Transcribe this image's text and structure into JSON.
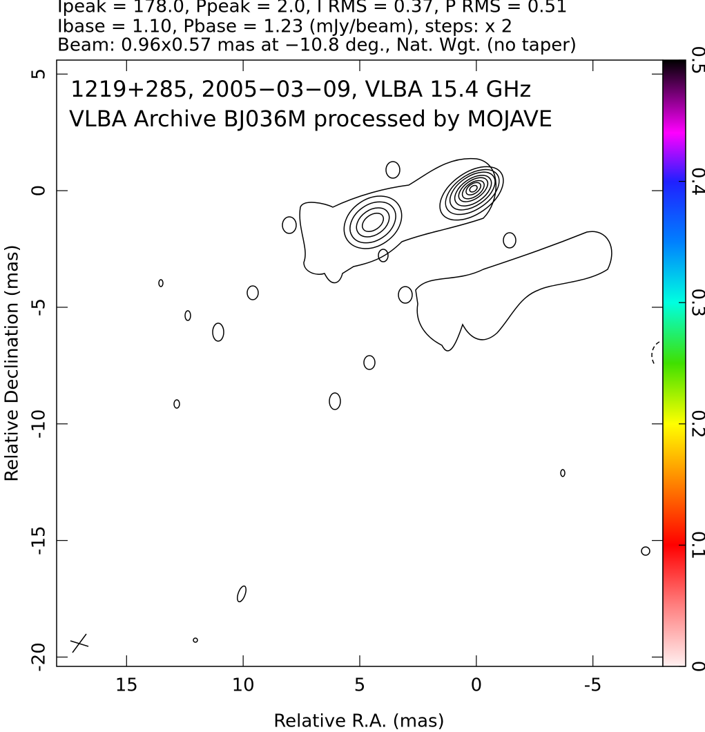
{
  "chart_data": {
    "type": "contour",
    "header_lines": [
      "Ipeak = 178.0, Ppeak = 2.0, I RMS = 0.37, P RMS = 0.51",
      "Ibase = 1.10, Pbase = 1.23 (mJy/beam), steps: x 2",
      "Beam: 0.96x0.57 mas at −10.8 deg., Nat. Wgt. (no taper)"
    ],
    "annotations": [
      "1219+285, 2005−03−09, VLBA 15.4 GHz",
      "VLBA Archive BJ036M processed by MOJAVE"
    ],
    "xlabel": "Relative R.A. (mas)",
    "ylabel": "Relative Declination (mas)",
    "xlim": [
      18,
      -8
    ],
    "xticks": [
      15,
      10,
      5,
      0,
      -5
    ],
    "ylim": [
      -20.4,
      5.6
    ],
    "yticks": [
      5,
      0,
      -5,
      -10,
      -15,
      -20
    ],
    "colorbar": {
      "lim": [
        0,
        0.5
      ],
      "ticks": [
        0,
        0.1,
        0.2,
        0.3,
        0.4,
        0.5
      ]
    }
  }
}
